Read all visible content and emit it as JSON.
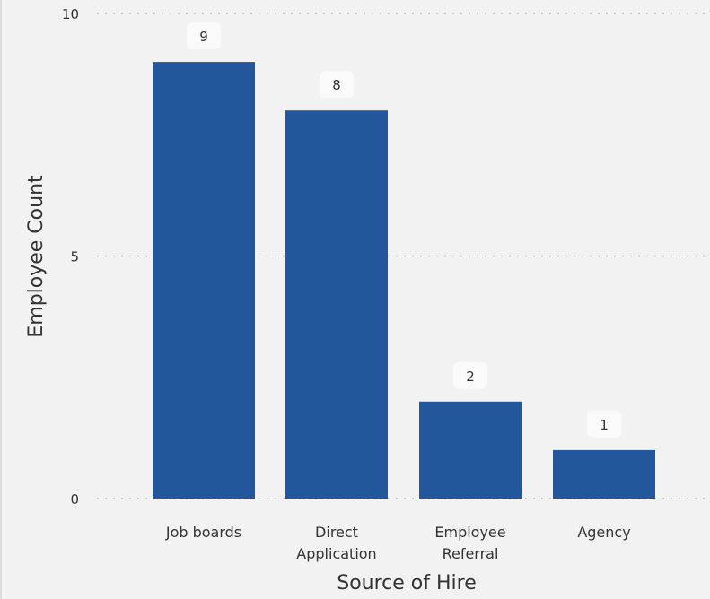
{
  "chart_data": {
    "type": "bar",
    "title": "",
    "xlabel": "Source of Hire",
    "ylabel": "Employee Count",
    "categories": [
      [
        "Job boards"
      ],
      [
        "Direct",
        "Application"
      ],
      [
        "Employee",
        "Referral"
      ],
      [
        "Agency"
      ]
    ],
    "values": [
      9,
      8,
      2,
      1
    ],
    "data_labels": [
      "9",
      "8",
      "2",
      "1"
    ],
    "ylim": [
      0,
      10
    ],
    "yticks": [
      0,
      5,
      10
    ],
    "ytick_labels": [
      "0",
      "5",
      "10"
    ],
    "grid": "horizontal dotted",
    "legend": "none",
    "colors": {
      "bar": "#23569a",
      "background": "#f2f2f2",
      "grid": "#b8b8b8",
      "text": "#333333",
      "label_bg": "#fafafa"
    }
  }
}
